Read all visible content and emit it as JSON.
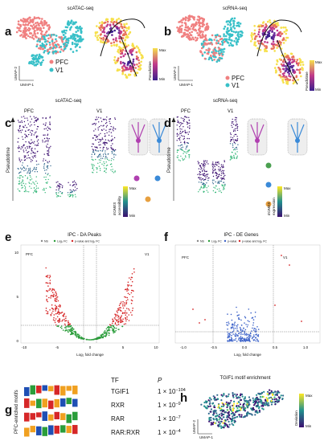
{
  "panels": {
    "a": {
      "letter": "a",
      "title": "scATAC-seq",
      "umap_y": "UMAP-2",
      "umap_x": "UMAP-1",
      "legend": [
        "PFC",
        "V1"
      ],
      "colorbar": {
        "title": "Pseudotime",
        "max": "Max",
        "min": "Min"
      }
    },
    "b": {
      "letter": "b",
      "title": "scRNA-seq",
      "umap_y": "UMAP-2",
      "umap_x": "UMAP-1",
      "legend": [
        "PFC",
        "V1"
      ],
      "colorbar": {
        "title": "Pseudotime",
        "max": "Max",
        "min": "Min"
      }
    },
    "c": {
      "letter": "c",
      "title": "scATAC-seq",
      "groups": [
        "PFC",
        "V1"
      ],
      "y_label": "Pseudotime",
      "colorbar": {
        "title": "EOMES",
        "subtitle": "accessibility",
        "max": "Max",
        "min": "Min"
      }
    },
    "d": {
      "letter": "d",
      "title": "scRNA-seq",
      "groups": [
        "PFC",
        "V1"
      ],
      "y_label": "Pseudotime",
      "colorbar": {
        "title": "EOMES",
        "subtitle": "expression",
        "max": "Max",
        "min": "Min"
      }
    },
    "e": {
      "letter": "e",
      "title": "IPC - DA Peaks",
      "legend": [
        "NS",
        "Log₂ FC",
        "p-value and log₂ FC"
      ],
      "sides": [
        "PFC",
        "V1"
      ],
      "x_label": "Log₂ fold change",
      "xticks": [
        "-10",
        "-5",
        "0",
        "5",
        "10"
      ],
      "yticks": [
        "0",
        "5",
        "10"
      ]
    },
    "f": {
      "letter": "f",
      "title": "IPC - DE Genes",
      "legend": [
        "NS",
        "Log₂ FC",
        "p-value",
        "p-value and log₂ FC"
      ],
      "sides": [
        "PFC",
        "V1"
      ],
      "x_label": "Log₂ fold change",
      "xticks": [
        "-1.0",
        "-0.5",
        "0.0",
        "0.5",
        "1.0"
      ]
    },
    "g": {
      "letter": "g",
      "side_label": "PFC-enriched motifs",
      "headers": [
        "TF",
        "P"
      ],
      "rows": [
        {
          "tf": "TGIF1",
          "base": "1 × 10",
          "exp": "−104"
        },
        {
          "tf": "RXR",
          "base": "1 × 10",
          "exp": "−9"
        },
        {
          "tf": "RAR",
          "base": "1 × 10",
          "exp": "−7"
        },
        {
          "tf": "RAR:RXR",
          "base": "1 × 10",
          "exp": "−4"
        }
      ]
    },
    "h": {
      "letter": "h",
      "title": "TGIF1 motif enrichment",
      "umap_y": "UMAP-2",
      "umap_x": "UMAP-1",
      "colorbar": {
        "title": "Deviation",
        "max": "Max",
        "min": "Min"
      }
    }
  }
}
